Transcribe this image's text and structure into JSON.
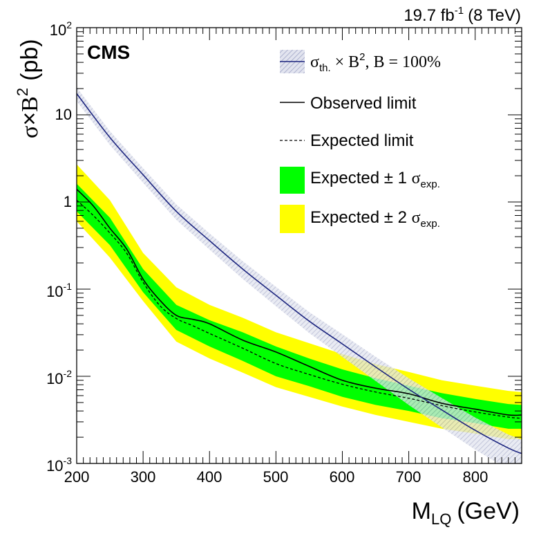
{
  "chart_data": {
    "type": "line",
    "title": "CMS",
    "lumi_label": {
      "base": "19.7 fb",
      "exponent": "-1",
      "energy": "(8 TeV)"
    },
    "xlabel": {
      "main": "M",
      "sub": "LQ",
      "unit": "(GeV)"
    },
    "ylabel": {
      "sigma": "σ",
      "times": "×",
      "b": "B",
      "exp": "2",
      "unit": "(pb)"
    },
    "xlim": [
      200,
      870
    ],
    "ylim": [
      0.001,
      100
    ],
    "yscale": "log",
    "x_ticks": [
      "200",
      "300",
      "400",
      "500",
      "600",
      "700",
      "800"
    ],
    "y_ticks": [
      {
        "base": "10",
        "exp": "-3"
      },
      {
        "base": "10",
        "exp": "-2"
      },
      {
        "base": "10",
        "exp": "-1"
      },
      {
        "base": "1",
        "exp": ""
      },
      {
        "base": "10",
        "exp": ""
      },
      {
        "base": "10",
        "exp": "2"
      }
    ],
    "legend": {
      "position": "top-right",
      "theory": {
        "sigma": "σ",
        "sub": "th.",
        "times": " × B",
        "exp": "2",
        "rest": ", B = 100%"
      },
      "observed": "Observed limit",
      "expected": "Expected limit",
      "band1": {
        "prefix": "Expected ± 1 ",
        "sigma": "σ",
        "sub": "exp."
      },
      "band2": {
        "prefix": "Expected ± 2 ",
        "sigma": "σ",
        "sub": "exp."
      }
    },
    "colors": {
      "theory_line": "#1a237e",
      "theory_band": "#c9cce0",
      "band1": "#00ff00",
      "band2": "#ffff00",
      "limit_line": "#000000"
    },
    "series": [
      {
        "name": "theory",
        "x": [
          200,
          250,
          300,
          350,
          400,
          450,
          500,
          550,
          600,
          650,
          700,
          750,
          800,
          850,
          870
        ],
        "values": [
          17.5,
          5.5,
          2.05,
          0.78,
          0.36,
          0.17,
          0.085,
          0.043,
          0.0235,
          0.0128,
          0.0071,
          0.0041,
          0.0024,
          0.0015,
          0.0013
        ],
        "band_frac": [
          0.18,
          0.18,
          0.19,
          0.2,
          0.21,
          0.23,
          0.25,
          0.27,
          0.29,
          0.31,
          0.34,
          0.37,
          0.4,
          0.43,
          0.45
        ]
      },
      {
        "name": "observed",
        "x": [
          200,
          225,
          250,
          275,
          300,
          325,
          350,
          375,
          400,
          450,
          500,
          550,
          600,
          650,
          700,
          750,
          800,
          850,
          870
        ],
        "values": [
          1.4,
          0.9,
          0.5,
          0.29,
          0.13,
          0.075,
          0.05,
          0.045,
          0.04,
          0.026,
          0.019,
          0.013,
          0.009,
          0.0073,
          0.0063,
          0.0049,
          0.0042,
          0.0036,
          0.0036
        ]
      },
      {
        "name": "expected",
        "x": [
          200,
          225,
          250,
          275,
          300,
          325,
          350,
          375,
          400,
          450,
          500,
          550,
          600,
          650,
          700,
          750,
          800,
          850,
          870
        ],
        "values": [
          1.05,
          0.7,
          0.44,
          0.26,
          0.12,
          0.065,
          0.046,
          0.038,
          0.031,
          0.021,
          0.014,
          0.0105,
          0.0081,
          0.0066,
          0.0056,
          0.0046,
          0.0039,
          0.0034,
          0.0033
        ]
      },
      {
        "name": "band1",
        "x": [
          200,
          250,
          300,
          350,
          400,
          450,
          500,
          550,
          600,
          650,
          700,
          750,
          800,
          850,
          870
        ],
        "low": [
          0.78,
          0.32,
          0.092,
          0.034,
          0.022,
          0.015,
          0.01,
          0.0077,
          0.0058,
          0.0047,
          0.004,
          0.0033,
          0.0029,
          0.0025,
          0.0025
        ],
        "high": [
          1.62,
          0.66,
          0.17,
          0.066,
          0.044,
          0.032,
          0.022,
          0.016,
          0.012,
          0.0095,
          0.0078,
          0.0064,
          0.0055,
          0.0048,
          0.0047
        ]
      },
      {
        "name": "band2",
        "x": [
          200,
          250,
          300,
          350,
          400,
          450,
          500,
          550,
          600,
          650,
          700,
          750,
          800,
          850,
          870
        ],
        "low": [
          0.6,
          0.23,
          0.073,
          0.025,
          0.016,
          0.011,
          0.0075,
          0.0058,
          0.0045,
          0.0036,
          0.003,
          0.0025,
          0.0022,
          0.0019,
          0.0019
        ],
        "high": [
          2.7,
          1.05,
          0.26,
          0.105,
          0.066,
          0.047,
          0.032,
          0.024,
          0.018,
          0.0138,
          0.0112,
          0.009,
          0.0078,
          0.0068,
          0.0066
        ]
      }
    ]
  }
}
